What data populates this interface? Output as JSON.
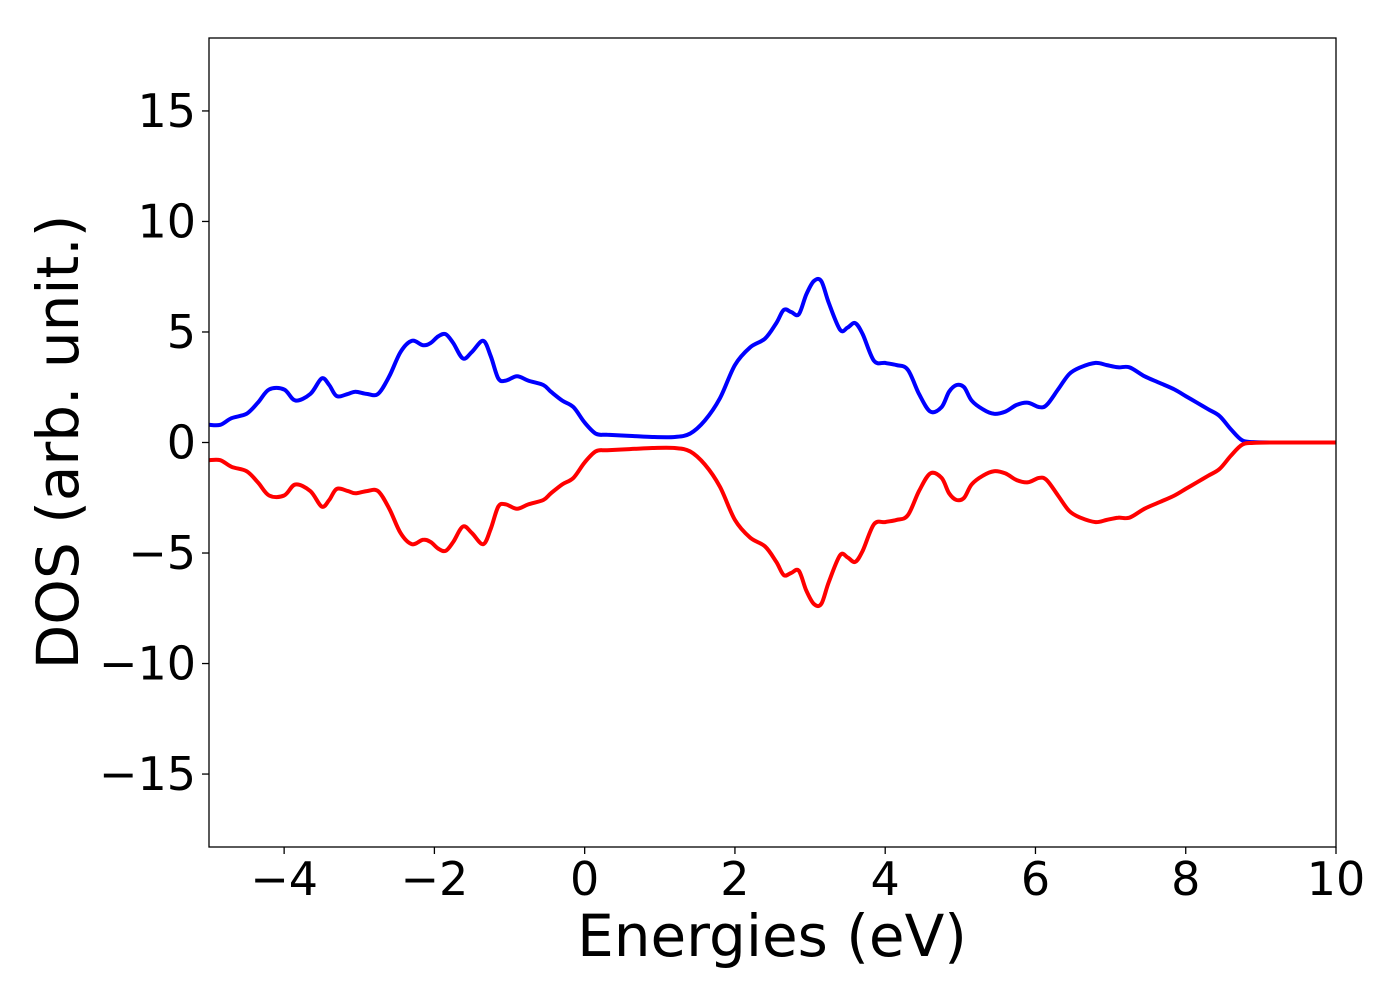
{
  "chart_data": {
    "type": "line",
    "title": "",
    "xlabel": "Energies (eV)",
    "ylabel": "DOS (arb. unit.)",
    "xlim": [
      -5,
      10
    ],
    "ylim": [
      -18.3,
      18.3
    ],
    "xticks": [
      -4,
      -2,
      0,
      2,
      4,
      6,
      8,
      10
    ],
    "xtick_labels": [
      "−4",
      "−2",
      "0",
      "2",
      "4",
      "6",
      "8",
      "10"
    ],
    "yticks": [
      -15,
      -10,
      -5,
      0,
      5,
      10,
      15
    ],
    "ytick_labels": [
      "−15",
      "−10",
      "−5",
      "0",
      "5",
      "10",
      "15"
    ],
    "grid": false,
    "legend": "none",
    "series": [
      {
        "color": "#0000ff",
        "x": [
          -5.0,
          -4.85,
          -4.7,
          -4.5,
          -4.35,
          -4.2,
          -4.0,
          -3.85,
          -3.65,
          -3.5,
          -3.4,
          -3.3,
          -3.15,
          -3.05,
          -2.9,
          -2.75,
          -2.6,
          -2.45,
          -2.3,
          -2.15,
          -2.05,
          -1.95,
          -1.85,
          -1.75,
          -1.62,
          -1.5,
          -1.35,
          -1.25,
          -1.15,
          -1.05,
          -0.9,
          -0.75,
          -0.55,
          -0.45,
          -0.3,
          -0.15,
          0.0,
          0.15,
          0.3,
          0.6,
          0.9,
          1.2,
          1.4,
          1.6,
          1.8,
          2.0,
          2.2,
          2.4,
          2.55,
          2.65,
          2.75,
          2.85,
          2.95,
          3.05,
          3.15,
          3.25,
          3.4,
          3.5,
          3.6,
          3.7,
          3.85,
          4.0,
          4.15,
          4.3,
          4.45,
          4.6,
          4.75,
          4.85,
          4.95,
          5.05,
          5.15,
          5.3,
          5.45,
          5.6,
          5.75,
          5.9,
          6.05,
          6.15,
          6.3,
          6.45,
          6.6,
          6.8,
          6.95,
          7.1,
          7.25,
          7.45,
          7.65,
          7.85,
          8.0,
          8.15,
          8.3,
          8.45,
          8.6,
          8.75,
          8.9,
          9.2,
          9.6,
          10.0
        ],
        "y": [
          0.8,
          0.8,
          1.1,
          1.3,
          1.8,
          2.4,
          2.4,
          1.9,
          2.2,
          2.9,
          2.6,
          2.1,
          2.2,
          2.3,
          2.2,
          2.2,
          3.0,
          4.1,
          4.6,
          4.4,
          4.5,
          4.8,
          4.9,
          4.5,
          3.8,
          4.1,
          4.6,
          3.9,
          2.9,
          2.8,
          3.0,
          2.8,
          2.6,
          2.3,
          1.9,
          1.6,
          0.9,
          0.4,
          0.35,
          0.3,
          0.25,
          0.25,
          0.4,
          1.0,
          2.0,
          3.5,
          4.3,
          4.7,
          5.4,
          6.0,
          5.9,
          5.8,
          6.7,
          7.3,
          7.3,
          6.3,
          5.1,
          5.2,
          5.4,
          4.9,
          3.7,
          3.6,
          3.5,
          3.3,
          2.2,
          1.4,
          1.6,
          2.3,
          2.6,
          2.5,
          1.9,
          1.5,
          1.3,
          1.4,
          1.7,
          1.8,
          1.6,
          1.7,
          2.4,
          3.1,
          3.4,
          3.6,
          3.5,
          3.4,
          3.4,
          3.0,
          2.7,
          2.4,
          2.1,
          1.8,
          1.5,
          1.2,
          0.6,
          0.1,
          0.02,
          0.0,
          0.0,
          0.0
        ]
      },
      {
        "color": "#ff0000",
        "x": [
          -5.0,
          -4.85,
          -4.7,
          -4.5,
          -4.35,
          -4.2,
          -4.0,
          -3.85,
          -3.65,
          -3.5,
          -3.4,
          -3.3,
          -3.15,
          -3.05,
          -2.9,
          -2.75,
          -2.6,
          -2.45,
          -2.3,
          -2.15,
          -2.05,
          -1.95,
          -1.85,
          -1.75,
          -1.62,
          -1.5,
          -1.35,
          -1.25,
          -1.15,
          -1.05,
          -0.9,
          -0.75,
          -0.55,
          -0.45,
          -0.3,
          -0.15,
          0.0,
          0.15,
          0.3,
          0.6,
          0.9,
          1.2,
          1.4,
          1.6,
          1.8,
          2.0,
          2.2,
          2.4,
          2.55,
          2.65,
          2.75,
          2.85,
          2.95,
          3.05,
          3.15,
          3.25,
          3.4,
          3.5,
          3.6,
          3.7,
          3.85,
          4.0,
          4.15,
          4.3,
          4.45,
          4.6,
          4.75,
          4.85,
          4.95,
          5.05,
          5.15,
          5.3,
          5.45,
          5.6,
          5.75,
          5.9,
          6.05,
          6.15,
          6.3,
          6.45,
          6.6,
          6.8,
          6.95,
          7.1,
          7.25,
          7.45,
          7.65,
          7.85,
          8.0,
          8.15,
          8.3,
          8.45,
          8.6,
          8.75,
          8.9,
          9.2,
          9.6,
          10.0
        ],
        "y": [
          -0.8,
          -0.8,
          -1.1,
          -1.3,
          -1.8,
          -2.4,
          -2.4,
          -1.9,
          -2.2,
          -2.9,
          -2.6,
          -2.1,
          -2.2,
          -2.3,
          -2.2,
          -2.2,
          -3.0,
          -4.1,
          -4.6,
          -4.4,
          -4.5,
          -4.8,
          -4.9,
          -4.5,
          -3.8,
          -4.1,
          -4.6,
          -3.9,
          -2.9,
          -2.8,
          -3.0,
          -2.8,
          -2.6,
          -2.3,
          -1.9,
          -1.6,
          -0.9,
          -0.4,
          -0.35,
          -0.3,
          -0.25,
          -0.25,
          -0.4,
          -1.0,
          -2.0,
          -3.5,
          -4.3,
          -4.7,
          -5.4,
          -6.0,
          -5.9,
          -5.8,
          -6.7,
          -7.3,
          -7.3,
          -6.3,
          -5.1,
          -5.2,
          -5.4,
          -4.9,
          -3.7,
          -3.6,
          -3.5,
          -3.3,
          -2.2,
          -1.4,
          -1.6,
          -2.3,
          -2.6,
          -2.5,
          -1.9,
          -1.5,
          -1.3,
          -1.4,
          -1.7,
          -1.8,
          -1.6,
          -1.7,
          -2.4,
          -3.1,
          -3.4,
          -3.6,
          -3.5,
          -3.4,
          -3.4,
          -3.0,
          -2.7,
          -2.4,
          -2.1,
          -1.8,
          -1.5,
          -1.2,
          -0.6,
          -0.1,
          -0.02,
          0.0,
          0.0,
          0.0
        ]
      }
    ]
  }
}
